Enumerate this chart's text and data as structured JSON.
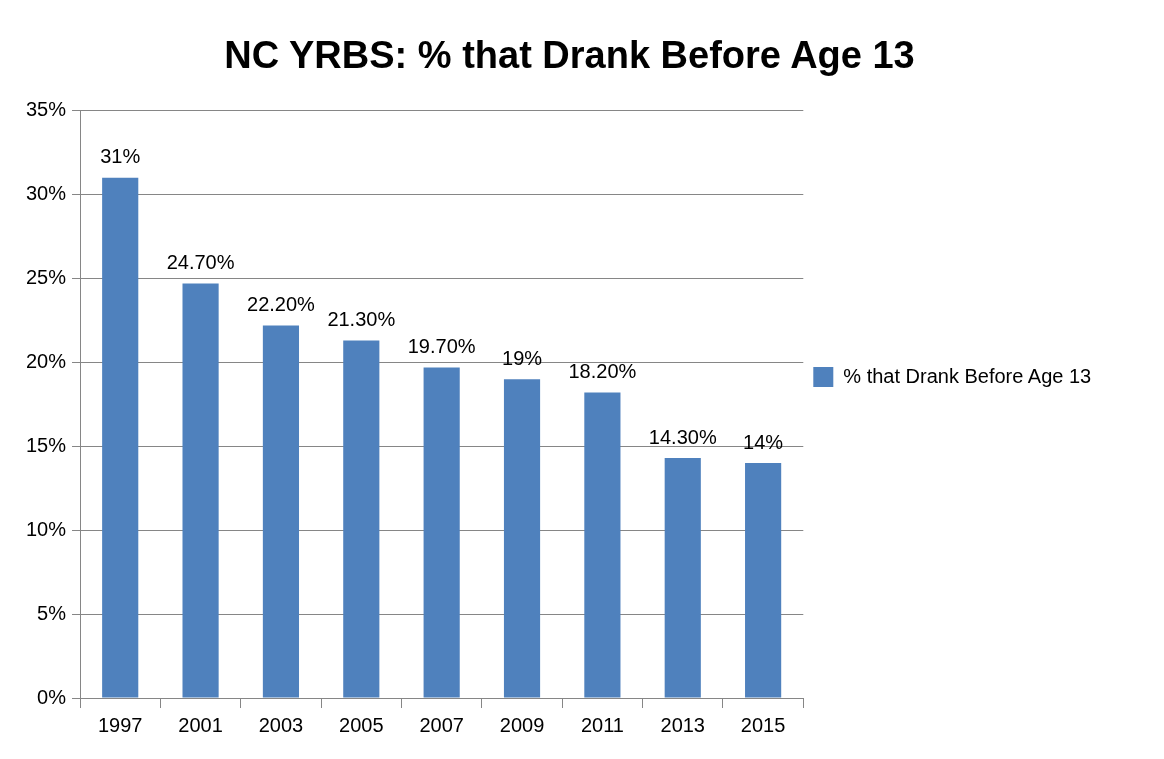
{
  "chart_data": {
    "type": "bar",
    "title": "NC YRBS: % that Drank Before Age 13",
    "categories": [
      "1997",
      "2001",
      "2003",
      "2005",
      "2007",
      "2009",
      "2011",
      "2013",
      "2015"
    ],
    "series": [
      {
        "name": "% that Drank Before Age 13",
        "color": "#4f81bd",
        "values": [
          31,
          24.7,
          22.2,
          21.3,
          19.7,
          19,
          18.2,
          14.3,
          14
        ],
        "value_labels": [
          "31%",
          "24.70%",
          "22.20%",
          "21.30%",
          "19.70%",
          "19%",
          "18.20%",
          "14.30%",
          "14%"
        ]
      }
    ],
    "ylim": [
      0,
      35
    ],
    "yticks": [
      {
        "value": 0,
        "label": "0%"
      },
      {
        "value": 5,
        "label": "5%"
      },
      {
        "value": 10,
        "label": "10%"
      },
      {
        "value": 15,
        "label": "15%"
      },
      {
        "value": 20,
        "label": "20%"
      },
      {
        "value": 25,
        "label": "25%"
      },
      {
        "value": 30,
        "label": "30%"
      },
      {
        "value": 35,
        "label": "35%"
      }
    ],
    "grid": "y",
    "legend": "right"
  }
}
